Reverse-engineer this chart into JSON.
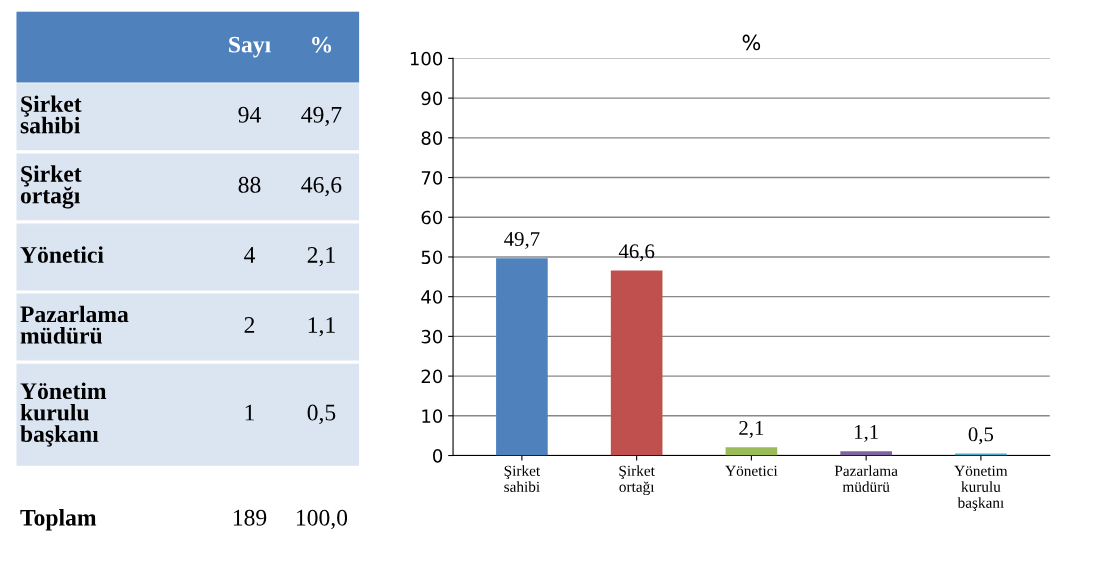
{
  "chart_data": [
    {
      "type": "other",
      "categories": [
        "Şirket\nsahibi",
        "Şirket\nortağı",
        "Yönetici",
        "Pazarlama\nmüdürü",
        "Yönetim\nkurulu\nbaşkanı",
        "Toplam"
      ],
      "annotations": [
        "Sayı",
        "%",
        "94",
        "49,7",
        "88",
        "46,6",
        "4",
        "2,1",
        "2",
        "1,1",
        "1",
        "0,5",
        "189",
        "100,0"
      ]
    },
    {
      "type": "bar",
      "title": "%",
      "categories": [
        "Şirket\nsahibi",
        "Şirket\nortağı",
        "Yönetici",
        "Pazarlama\nmüdürü",
        "Yönetim\nkurulu\nbaşkanı"
      ],
      "values": [
        49.7,
        46.6,
        2.1,
        1.1,
        0.5
      ],
      "value_labels": [
        "49,7",
        "46,6",
        "2,1",
        "1,1",
        "0,5"
      ],
      "colors": [
        "#4f81bd",
        "#c0504d",
        "#9bbb59",
        "#8064a2",
        "#4bacc6"
      ],
      "ylim": [
        0,
        100
      ],
      "yticks": [
        0,
        10,
        20,
        30,
        40,
        50,
        60,
        70,
        80,
        90,
        100
      ],
      "grid": "y",
      "legend": false
    }
  ]
}
